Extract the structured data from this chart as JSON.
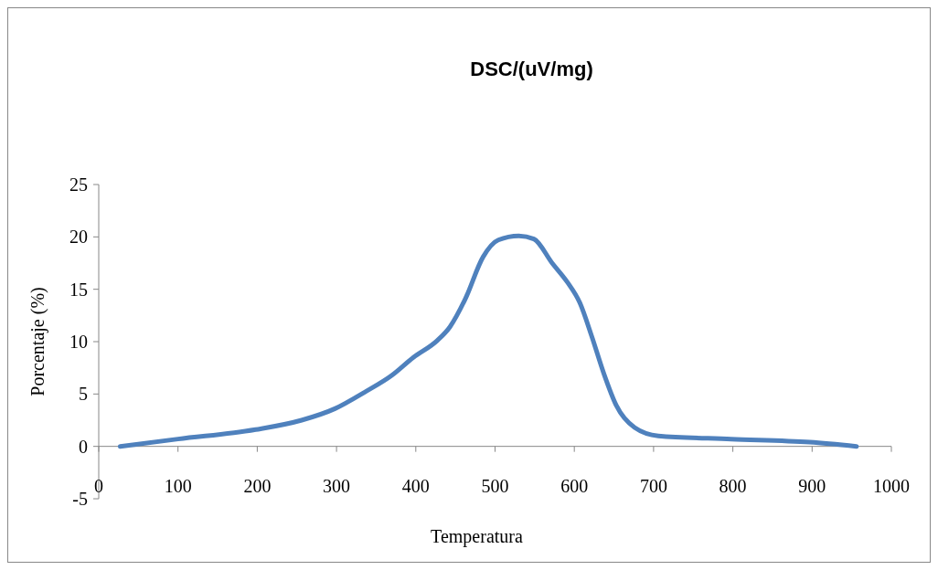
{
  "chart_data": {
    "type": "line",
    "title": "DSC/(uV/mg)",
    "xlabel": "Temperatura",
    "ylabel": "Porcentaje (%)",
    "xlim": [
      0,
      1000
    ],
    "xticks": [
      0,
      100,
      200,
      300,
      400,
      500,
      600,
      700,
      800,
      900,
      1000
    ],
    "ylim": [
      -5,
      25
    ],
    "yticks": [
      -5,
      0,
      5,
      10,
      15,
      20,
      25
    ],
    "grid": false,
    "marker": "none",
    "line_style": "solid",
    "series": [
      {
        "color": "#4f81bd",
        "x": [
          27,
          100,
          198,
          256,
          298,
          336,
          370,
          397,
          427,
          443,
          462,
          485,
          504,
          530,
          549,
          572,
          591,
          607,
          622,
          637,
          653,
          676,
          706,
          798,
          897,
          956
        ],
        "values": [
          0,
          0.7,
          1.6,
          2.5,
          3.6,
          5.2,
          6.8,
          8.5,
          10.1,
          11.4,
          14,
          18.1,
          19.7,
          20.1,
          19.8,
          17.5,
          15.7,
          13.7,
          10.5,
          7,
          3.9,
          1.8,
          1,
          0.7,
          0.4,
          0
        ]
      }
    ]
  }
}
